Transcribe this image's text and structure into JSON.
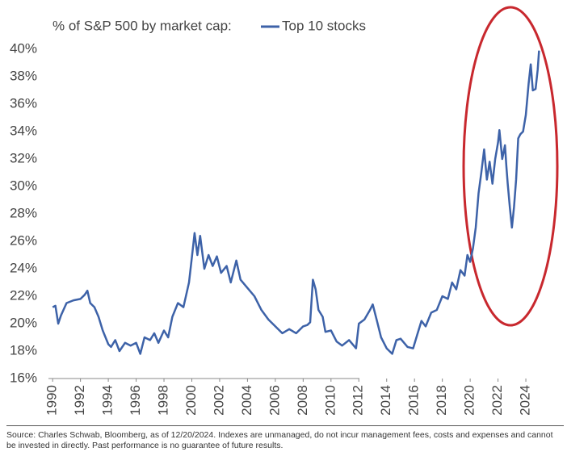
{
  "chart_data": {
    "type": "line",
    "title": "% of S&P 500 by market cap:",
    "series": [
      {
        "name": "Top 10 stocks",
        "color": "#3d62a8",
        "x": [
          1990,
          1990.2,
          1990.4,
          1990.6,
          1991,
          1991.5,
          1992,
          1992.3,
          1992.5,
          1992.7,
          1993,
          1993.3,
          1993.6,
          1994,
          1994.2,
          1994.5,
          1994.8,
          1995.2,
          1995.6,
          1996,
          1996.3,
          1996.6,
          1997,
          1997.3,
          1997.6,
          1998,
          1998.3,
          1998.6,
          1999,
          1999.4,
          1999.8,
          2000,
          2000.2,
          2000.4,
          2000.6,
          2000.9,
          2001.2,
          2001.5,
          2001.8,
          2002.1,
          2002.5,
          2002.8,
          2003.2,
          2003.5,
          2004,
          2004.5,
          2005,
          2005.5,
          2006,
          2006.5,
          2007,
          2007.5,
          2008,
          2008.3,
          2008.5,
          2008.7,
          2008.9,
          2009.1,
          2009.4,
          2009.6,
          2010,
          2010.4,
          2010.8,
          2011.3,
          2011.8,
          2012,
          2012.4,
          2012.8,
          2013,
          2013.3,
          2013.6,
          2014,
          2014.4,
          2014.7,
          2015,
          2015.5,
          2015.9,
          2016.2,
          2016.5,
          2016.8,
          2017.2,
          2017.6,
          2018,
          2018.4,
          2018.7,
          2019,
          2019.3,
          2019.6,
          2019.8,
          2020,
          2020.2,
          2020.4,
          2020.6,
          2020.8,
          2021,
          2021.2,
          2021.4,
          2021.6,
          2021.8,
          2022,
          2022.1,
          2022.3,
          2022.5,
          2022.6,
          2022.7,
          2022.85,
          2023,
          2023.15,
          2023.3,
          2023.45,
          2023.6,
          2023.8,
          2024,
          2024.2,
          2024.35,
          2024.5,
          2024.7,
          2024.85,
          2024.95
        ],
        "values": [
          21.2,
          21.3,
          20.0,
          20.6,
          21.5,
          21.7,
          21.8,
          22.1,
          22.4,
          21.5,
          21.2,
          20.5,
          19.5,
          18.5,
          18.3,
          18.8,
          18.0,
          18.6,
          18.4,
          18.6,
          17.8,
          19.0,
          18.8,
          19.3,
          18.6,
          19.5,
          19.0,
          20.5,
          21.5,
          21.2,
          23.0,
          24.8,
          26.6,
          25.0,
          26.4,
          24.0,
          25.0,
          24.2,
          24.9,
          23.7,
          24.2,
          23.0,
          24.6,
          23.2,
          22.6,
          22.0,
          21.0,
          20.3,
          19.8,
          19.3,
          19.6,
          19.3,
          19.8,
          19.9,
          20.1,
          23.2,
          22.5,
          21.0,
          20.5,
          19.4,
          19.5,
          18.7,
          18.4,
          18.8,
          18.2,
          20.0,
          20.3,
          21.0,
          21.4,
          20.2,
          19.0,
          18.2,
          17.8,
          18.8,
          18.9,
          18.3,
          18.2,
          19.2,
          20.2,
          19.8,
          20.8,
          21.0,
          22.0,
          21.8,
          23.0,
          22.5,
          23.9,
          23.5,
          25.0,
          24.5,
          25.5,
          27.0,
          29.5,
          31.0,
          32.7,
          30.5,
          31.8,
          30.2,
          32.0,
          33.2,
          34.1,
          32.0,
          33.0,
          31.5,
          30.2,
          28.5,
          27.0,
          28.5,
          30.5,
          33.5,
          33.8,
          34.0,
          35.2,
          37.5,
          38.9,
          37.0,
          37.1,
          38.5,
          39.9
        ]
      }
    ],
    "xlim": [
      1989.7,
      2025.1
    ],
    "xticks": [
      1990,
      1992,
      1994,
      1996,
      1998,
      2000,
      2002,
      2004,
      2006,
      2008,
      2010,
      2012,
      2014,
      2016,
      2018,
      2020,
      2022,
      2024
    ],
    "ylim": [
      16,
      40
    ],
    "yticks": [
      {
        "value": 16,
        "label": "16%"
      },
      {
        "value": 18,
        "label": "18%"
      },
      {
        "value": 20,
        "label": "20%"
      },
      {
        "value": 22,
        "label": "22%"
      },
      {
        "value": 24,
        "label": "24%"
      },
      {
        "value": 26,
        "label": "26%"
      },
      {
        "value": 28,
        "label": "28%"
      },
      {
        "value": 30,
        "label": "30%"
      },
      {
        "value": 32,
        "label": "32%"
      },
      {
        "value": 34,
        "label": "34%"
      },
      {
        "value": 36,
        "label": "36%"
      },
      {
        "value": 38,
        "label": "38%"
      },
      {
        "value": 40,
        "label": "40%"
      }
    ],
    "grid": false,
    "source": "Source: Charles Schwab, Bloomberg, as of 12/20/2024. Indexes are unmanaged, do not incur management fees, costs and expenses and cannot be invested in directly. Past performance is no guarantee of future results."
  }
}
